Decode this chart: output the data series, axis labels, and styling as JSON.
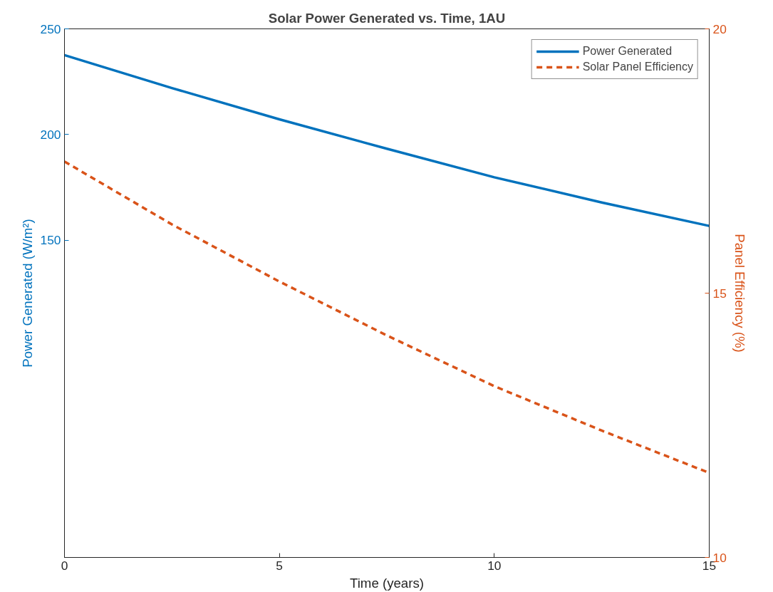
{
  "chart_data": {
    "type": "line",
    "title": "Solar Power Generated vs. Time, 1AU",
    "xlabel": "Time (years)",
    "ylabel": "Power Generated (W/m²)",
    "y2label": "Panel Efficiency (%)",
    "x": [
      0,
      2.5,
      5,
      7.5,
      10,
      12.5,
      15
    ],
    "series": [
      {
        "name": "Power Generated",
        "color": "#0072bd",
        "line_style": "solid",
        "values": [
          237.6,
          222.0,
          207.2,
          193.3,
          179.8,
          167.9,
          156.8
        ]
      },
      {
        "name": "Solar Panel Efficiency",
        "color": "#d95319",
        "line_style": "dashed",
        "axis": "y2",
        "values": [
          17.49,
          16.3,
          15.22,
          14.2,
          13.24,
          12.4,
          11.6
        ]
      }
    ],
    "xlim": [
      0,
      15
    ],
    "xticks": [
      0,
      5,
      10,
      15
    ],
    "ylim": [
      0,
      250
    ],
    "yticks": [
      150,
      200,
      250
    ],
    "y2lim": [
      10,
      20
    ],
    "y2ticks": [
      10,
      15,
      20
    ],
    "grid": false,
    "legend": "top right",
    "marker": "none"
  }
}
